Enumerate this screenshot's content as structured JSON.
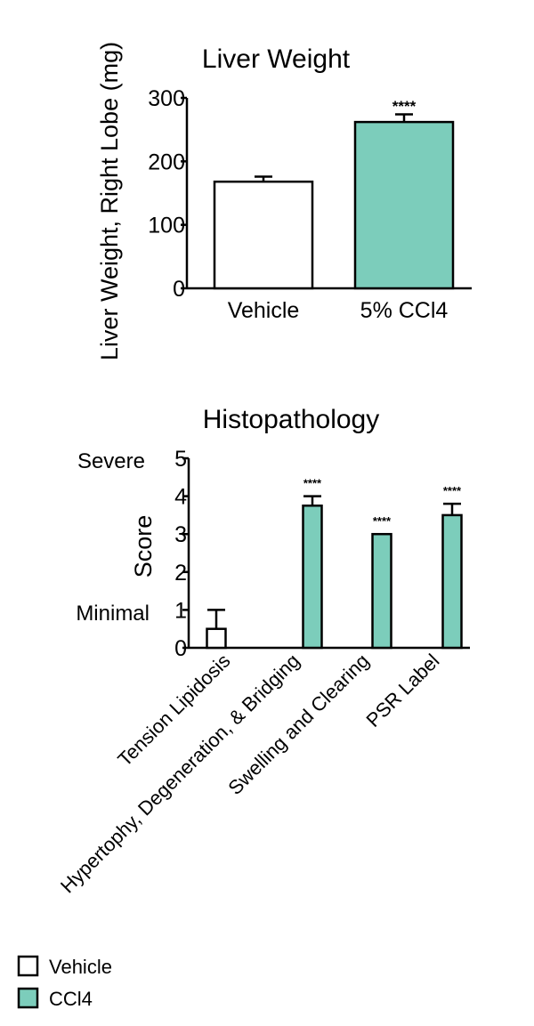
{
  "colors": {
    "vehicle_fill": "#ffffff",
    "ccl4_fill": "#7ccdbb",
    "stroke": "#000000"
  },
  "chart_data": [
    {
      "type": "bar",
      "title": "Liver Weight",
      "ylabel": "Liver Weight, Right Lobe (mg)",
      "xlabel": "",
      "ylim": [
        0,
        300
      ],
      "yticks": [
        0,
        100,
        200,
        300
      ],
      "categories": [
        "Vehicle",
        "5% CCl4"
      ],
      "values": [
        168,
        262
      ],
      "errors": [
        8,
        12
      ],
      "significance": [
        "",
        "****"
      ],
      "fills": [
        "vehicle",
        "ccl4"
      ],
      "grid": false
    },
    {
      "type": "bar",
      "title": "Histopathology",
      "ylabel": "Score",
      "xlabel": "",
      "ylim": [
        0,
        5
      ],
      "yticks": [
        0,
        1,
        2,
        3,
        4,
        5
      ],
      "qualitative_labels": [
        {
          "value": 5,
          "text": "Severe"
        },
        {
          "value": 1,
          "text": "Minimal"
        }
      ],
      "categories": [
        "Tension Lipidosis",
        "Hypertophy, Degeneration, & Bridging",
        "Swelling and Clearing",
        "PSR Label"
      ],
      "series": [
        {
          "name": "Vehicle",
          "values": [
            0.5,
            0,
            0,
            0
          ],
          "errors": [
            0.5,
            0,
            0,
            0
          ],
          "significance": [
            "",
            "",
            "",
            ""
          ]
        },
        {
          "name": "CCl4",
          "values": [
            0,
            3.75,
            3.0,
            3.5
          ],
          "errors": [
            0,
            0.25,
            0,
            0.3
          ],
          "significance": [
            "",
            "****",
            "****",
            "****"
          ]
        }
      ],
      "legend": {
        "position": "bottom-left",
        "entries": [
          {
            "label": "Vehicle",
            "fill": "vehicle"
          },
          {
            "label": "CCl4",
            "fill": "ccl4"
          }
        ]
      },
      "grid": false
    }
  ]
}
